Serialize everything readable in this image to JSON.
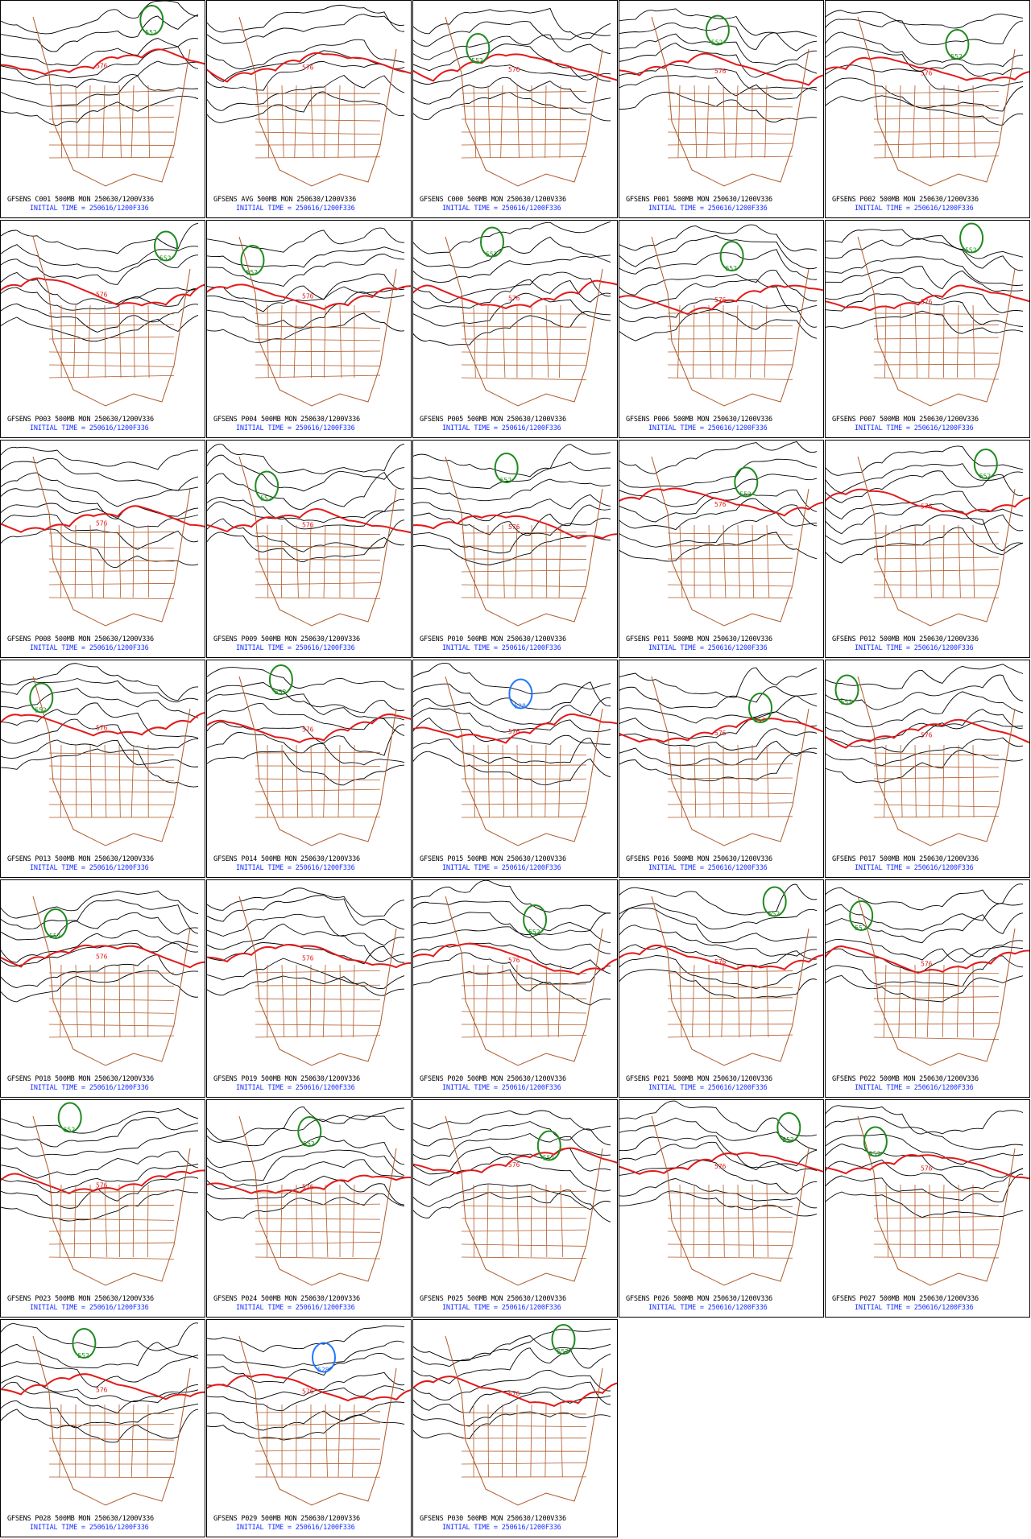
{
  "common": {
    "level": "500MB",
    "day": "MON",
    "valid": "250630/1200V336",
    "init_label": "INITIAL TIME = ",
    "init_value": "250616/1200F336"
  },
  "colors": {
    "contour": "#000000",
    "low_552": "#1f8a1f",
    "line_576": "#e21a1a",
    "low_528": "#2277ff",
    "borders": "#b05a2a"
  },
  "panels": [
    {
      "member": "GFSENS C001",
      "features": [
        {
          "type": "low",
          "label": "552"
        }
      ]
    },
    {
      "member": "GFSENS AVG",
      "features": []
    },
    {
      "member": "GFSENS C000",
      "features": [
        {
          "type": "low",
          "label": "552"
        }
      ]
    },
    {
      "member": "GFSENS P001",
      "features": [
        {
          "type": "low",
          "label": "552"
        }
      ]
    },
    {
      "member": "GFSENS P002",
      "features": [
        {
          "type": "low",
          "label": "552"
        }
      ]
    },
    {
      "member": "GFSENS P003",
      "features": [
        {
          "type": "low",
          "label": "552"
        }
      ]
    },
    {
      "member": "GFSENS P004",
      "features": [
        {
          "type": "low",
          "label": "552"
        }
      ]
    },
    {
      "member": "GFSENS P005",
      "features": [
        {
          "type": "low",
          "label": "552"
        }
      ]
    },
    {
      "member": "GFSENS P006",
      "features": [
        {
          "type": "low",
          "label": "552"
        }
      ]
    },
    {
      "member": "GFSENS P007",
      "features": [
        {
          "type": "low",
          "label": "552"
        }
      ]
    },
    {
      "member": "GFSENS P008",
      "features": []
    },
    {
      "member": "GFSENS P009",
      "features": [
        {
          "type": "low",
          "label": "552"
        }
      ]
    },
    {
      "member": "GFSENS P010",
      "features": [
        {
          "type": "low",
          "label": "552"
        }
      ]
    },
    {
      "member": "GFSENS P011",
      "features": [
        {
          "type": "low",
          "label": "552"
        }
      ]
    },
    {
      "member": "GFSENS P012",
      "features": [
        {
          "type": "low",
          "label": "552"
        }
      ]
    },
    {
      "member": "GFSENS P013",
      "features": [
        {
          "type": "low",
          "label": "552"
        }
      ]
    },
    {
      "member": "GFSENS P014",
      "features": [
        {
          "type": "low",
          "label": "552"
        }
      ]
    },
    {
      "member": "GFSENS P015",
      "features": [
        {
          "type": "low",
          "label": "528"
        }
      ]
    },
    {
      "member": "GFSENS P016",
      "features": [
        {
          "type": "low",
          "label": "552"
        }
      ]
    },
    {
      "member": "GFSENS P017",
      "features": [
        {
          "type": "low",
          "label": "552"
        }
      ]
    },
    {
      "member": "GFSENS P018",
      "features": [
        {
          "type": "low",
          "label": "552"
        }
      ]
    },
    {
      "member": "GFSENS P019",
      "features": []
    },
    {
      "member": "GFSENS P020",
      "features": [
        {
          "type": "low",
          "label": "552"
        }
      ]
    },
    {
      "member": "GFSENS P021",
      "features": [
        {
          "type": "low",
          "label": "552"
        }
      ]
    },
    {
      "member": "GFSENS P022",
      "features": [
        {
          "type": "low",
          "label": "552"
        }
      ]
    },
    {
      "member": "GFSENS P023",
      "features": [
        {
          "type": "low",
          "label": "552"
        }
      ]
    },
    {
      "member": "GFSENS P024",
      "features": [
        {
          "type": "low",
          "label": "552"
        }
      ]
    },
    {
      "member": "GFSENS P025",
      "features": [
        {
          "type": "low",
          "label": "552"
        }
      ]
    },
    {
      "member": "GFSENS P026",
      "features": [
        {
          "type": "low",
          "label": "552"
        }
      ]
    },
    {
      "member": "GFSENS P027",
      "features": [
        {
          "type": "low",
          "label": "552"
        }
      ]
    },
    {
      "member": "GFSENS P028",
      "features": [
        {
          "type": "low",
          "label": "552"
        }
      ]
    },
    {
      "member": "GFSENS P029",
      "features": [
        {
          "type": "low",
          "label": "528"
        }
      ]
    },
    {
      "member": "GFSENS P030",
      "features": [
        {
          "type": "low",
          "label": "552"
        }
      ]
    }
  ],
  "labels": {
    "ridge": "576"
  }
}
